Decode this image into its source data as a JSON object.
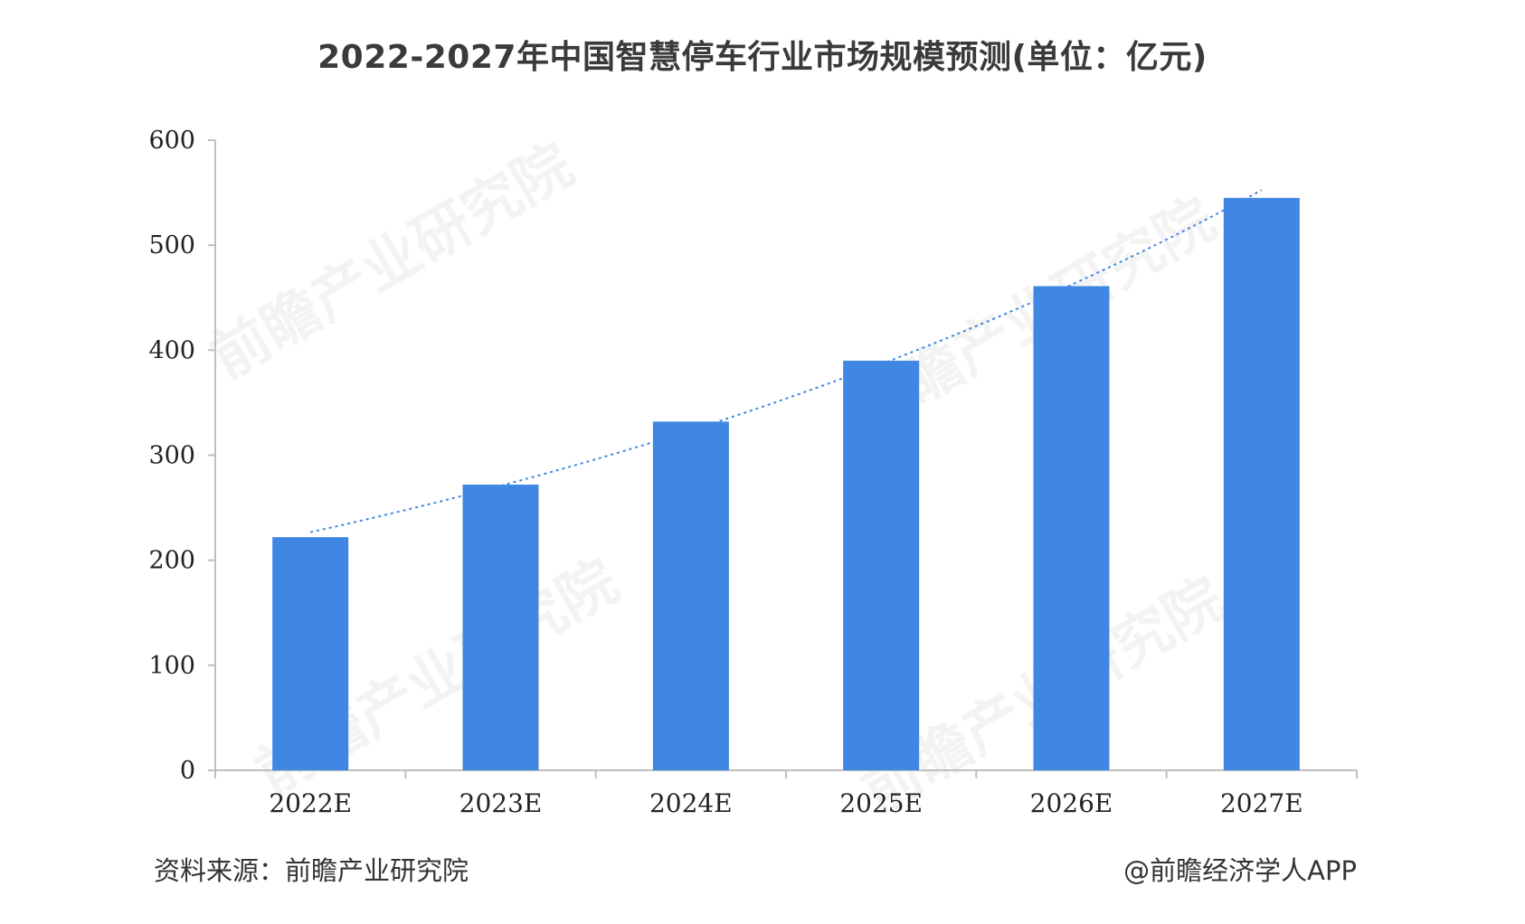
{
  "chart_data": {
    "type": "bar",
    "title": "2022-2027年中国智慧停车行业市场规模预测(单位：亿元)",
    "categories": [
      "2022E",
      "2023E",
      "2024E",
      "2025E",
      "2026E",
      "2027E"
    ],
    "values": [
      222,
      272,
      332,
      390,
      461,
      545
    ],
    "ylim": [
      0,
      600
    ],
    "yticks": [
      0,
      100,
      200,
      300,
      400,
      500,
      600
    ],
    "grid": false,
    "trendline": true,
    "colors": {
      "bar": "#3f87e3",
      "trendline": "#3f87e3",
      "axis": "#bfbfbf"
    }
  },
  "source_note": "资料来源：前瞻产业研究院",
  "brand_credit": "@前瞻经济学人APP",
  "watermark_text": "前瞻产业研究院"
}
